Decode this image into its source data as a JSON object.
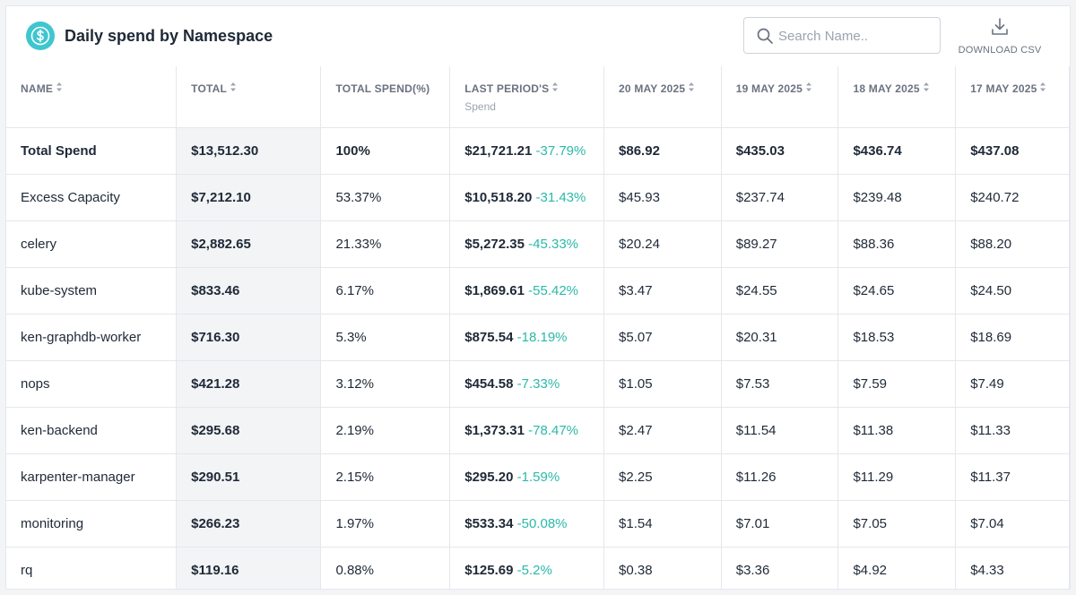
{
  "header": {
    "title": "Daily spend by Namespace",
    "logo_icon": "dollar-circle-icon",
    "accent_color": "#3fc6cf",
    "search_placeholder": "Search Name..",
    "search_value": "",
    "download_label": "DOWNLOAD CSV"
  },
  "table": {
    "columns": {
      "name": "NAME",
      "total": "TOTAL",
      "total_pct": "TOTAL SPEND(%)",
      "last_period": "LAST PERIOD'S",
      "last_period_sub": "Spend",
      "d1": "20 MAY 2025",
      "d2": "19 MAY 2025",
      "d3": "18 MAY 2025",
      "d4": "17 MAY 2025"
    },
    "change_color": "#2bb9a9",
    "rows": [
      {
        "name": "Total Spend",
        "total": "$13,512.30",
        "pct": "100%",
        "last": "$21,721.21",
        "change": "-37.79%",
        "d1": "$86.92",
        "d2": "$435.03",
        "d3": "$436.74",
        "d4": "$437.08"
      },
      {
        "name": "Excess Capacity",
        "total": "$7,212.10",
        "pct": "53.37%",
        "last": "$10,518.20",
        "change": "-31.43%",
        "d1": "$45.93",
        "d2": "$237.74",
        "d3": "$239.48",
        "d4": "$240.72"
      },
      {
        "name": "celery",
        "total": "$2,882.65",
        "pct": "21.33%",
        "last": "$5,272.35",
        "change": "-45.33%",
        "d1": "$20.24",
        "d2": "$89.27",
        "d3": "$88.36",
        "d4": "$88.20"
      },
      {
        "name": "kube-system",
        "total": "$833.46",
        "pct": "6.17%",
        "last": "$1,869.61",
        "change": "-55.42%",
        "d1": "$3.47",
        "d2": "$24.55",
        "d3": "$24.65",
        "d4": "$24.50"
      },
      {
        "name": "ken-graphdb-worker",
        "total": "$716.30",
        "pct": "5.3%",
        "last": "$875.54",
        "change": "-18.19%",
        "d1": "$5.07",
        "d2": "$20.31",
        "d3": "$18.53",
        "d4": "$18.69"
      },
      {
        "name": "nops",
        "total": "$421.28",
        "pct": "3.12%",
        "last": "$454.58",
        "change": "-7.33%",
        "d1": "$1.05",
        "d2": "$7.53",
        "d3": "$7.59",
        "d4": "$7.49"
      },
      {
        "name": "ken-backend",
        "total": "$295.68",
        "pct": "2.19%",
        "last": "$1,373.31",
        "change": "-78.47%",
        "d1": "$2.47",
        "d2": "$11.54",
        "d3": "$11.38",
        "d4": "$11.33"
      },
      {
        "name": "karpenter-manager",
        "total": "$290.51",
        "pct": "2.15%",
        "last": "$295.20",
        "change": "-1.59%",
        "d1": "$2.25",
        "d2": "$11.26",
        "d3": "$11.29",
        "d4": "$11.37"
      },
      {
        "name": "monitoring",
        "total": "$266.23",
        "pct": "1.97%",
        "last": "$533.34",
        "change": "-50.08%",
        "d1": "$1.54",
        "d2": "$7.01",
        "d3": "$7.05",
        "d4": "$7.04"
      },
      {
        "name": "rq",
        "total": "$119.16",
        "pct": "0.88%",
        "last": "$125.69",
        "change": "-5.2%",
        "d1": "$0.38",
        "d2": "$3.36",
        "d3": "$4.92",
        "d4": "$4.33"
      }
    ]
  }
}
